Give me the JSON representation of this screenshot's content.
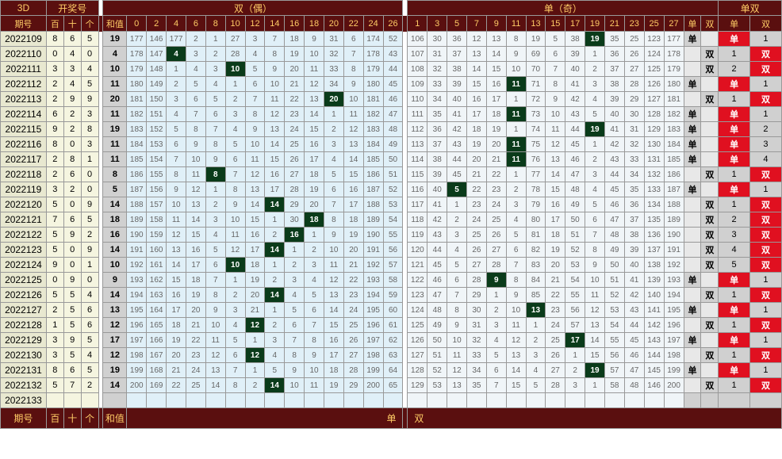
{
  "header": {
    "title3d": "3D",
    "kjh": "开奖号",
    "shuang": "双（偶）",
    "dan": "单（奇）",
    "ds": "单双",
    "qihao": "期号",
    "bai": "百",
    "shi": "十",
    "ge": "个",
    "hezhi": "和值",
    "danL": "单",
    "shuangL": "双"
  },
  "even_cols": [
    0,
    2,
    4,
    6,
    8,
    10,
    12,
    14,
    16,
    18,
    20,
    22,
    24,
    26
  ],
  "odd_cols": [
    1,
    3,
    5,
    7,
    9,
    11,
    13,
    15,
    17,
    19,
    21,
    23,
    25,
    27
  ],
  "rows": [
    {
      "qi": "2022109",
      "d": [
        8,
        6,
        5
      ],
      "hz": 19,
      "ev": [
        177,
        146,
        177,
        2,
        1,
        27,
        3,
        7,
        18,
        9,
        31,
        6,
        174,
        52
      ],
      "od": [
        106,
        30,
        36,
        12,
        13,
        8,
        19,
        5,
        38,
        "",
        35,
        25,
        123,
        177
      ],
      "ehit": -1,
      "ohit": 9,
      "v": 19,
      "sd": "单",
      "dc": "单",
      "sc": 1
    },
    {
      "qi": "2022110",
      "d": [
        0,
        4,
        0
      ],
      "hz": 4,
      "ev": [
        178,
        147,
        "",
        3,
        2,
        28,
        4,
        8,
        19,
        10,
        32,
        7,
        178,
        43
      ],
      "od": [
        107,
        31,
        37,
        13,
        14,
        9,
        69,
        6,
        39,
        1,
        36,
        26,
        124,
        178
      ],
      "ehit": 2,
      "ohit": -1,
      "v": 4,
      "sd": "双",
      "dc": 1,
      "sc": "双"
    },
    {
      "qi": "2022111",
      "d": [
        3,
        3,
        4
      ],
      "hz": 10,
      "ev": [
        179,
        148,
        1,
        4,
        3,
        "",
        5,
        9,
        20,
        11,
        33,
        8,
        179,
        44
      ],
      "od": [
        108,
        32,
        38,
        14,
        15,
        10,
        70,
        7,
        40,
        2,
        37,
        27,
        125,
        179
      ],
      "ehit": 5,
      "ohit": -1,
      "v": 10,
      "sd": "双",
      "dc": 2,
      "sc": "双"
    },
    {
      "qi": "2022112",
      "d": [
        2,
        4,
        5
      ],
      "hz": 11,
      "ev": [
        180,
        149,
        2,
        5,
        4,
        1,
        6,
        10,
        21,
        12,
        34,
        9,
        180,
        45
      ],
      "od": [
        109,
        33,
        39,
        15,
        16,
        "",
        71,
        8,
        41,
        3,
        38,
        28,
        126,
        180
      ],
      "ehit": -1,
      "ohit": 5,
      "v": 11,
      "sd": "单",
      "dc": "单",
      "sc": 1
    },
    {
      "qi": "2022113",
      "d": [
        2,
        9,
        9
      ],
      "hz": 20,
      "ev": [
        181,
        150,
        3,
        6,
        5,
        2,
        7,
        11,
        22,
        13,
        "",
        10,
        181,
        46
      ],
      "od": [
        110,
        34,
        40,
        16,
        17,
        1,
        72,
        9,
        42,
        4,
        39,
        29,
        127,
        181
      ],
      "ehit": 10,
      "ohit": -1,
      "v": 20,
      "sd": "双",
      "dc": 1,
      "sc": "双"
    },
    {
      "qi": "2022114",
      "d": [
        6,
        2,
        3
      ],
      "hz": 11,
      "ev": [
        182,
        151,
        4,
        7,
        6,
        3,
        8,
        12,
        23,
        14,
        1,
        11,
        182,
        47
      ],
      "od": [
        111,
        35,
        41,
        17,
        18,
        "",
        73,
        10,
        43,
        5,
        40,
        30,
        128,
        182
      ],
      "ehit": -1,
      "ohit": 5,
      "v": 11,
      "sd": "单",
      "dc": "单",
      "sc": 1
    },
    {
      "qi": "2022115",
      "d": [
        9,
        2,
        8
      ],
      "hz": 19,
      "ev": [
        183,
        152,
        5,
        8,
        7,
        4,
        9,
        13,
        24,
        15,
        2,
        12,
        183,
        48
      ],
      "od": [
        112,
        36,
        42,
        18,
        19,
        1,
        74,
        11,
        44,
        "",
        41,
        31,
        129,
        183
      ],
      "ehit": -1,
      "ohit": 9,
      "v": 19,
      "sd": "单",
      "dc": "单",
      "sc": 2
    },
    {
      "qi": "2022116",
      "d": [
        8,
        0,
        3
      ],
      "hz": 11,
      "ev": [
        184,
        153,
        6,
        9,
        8,
        5,
        10,
        14,
        25,
        16,
        3,
        13,
        184,
        49
      ],
      "od": [
        113,
        37,
        43,
        19,
        20,
        "",
        75,
        12,
        45,
        1,
        42,
        32,
        130,
        184
      ],
      "ehit": -1,
      "ohit": 5,
      "v": 11,
      "sd": "单",
      "dc": "单",
      "sc": 3
    },
    {
      "qi": "2022117",
      "d": [
        2,
        8,
        1
      ],
      "hz": 11,
      "ev": [
        185,
        154,
        7,
        10,
        9,
        6,
        11,
        15,
        26,
        17,
        4,
        14,
        185,
        50
      ],
      "od": [
        114,
        38,
        44,
        20,
        21,
        "",
        76,
        13,
        46,
        2,
        43,
        33,
        131,
        185
      ],
      "ehit": -1,
      "ohit": 5,
      "v": 11,
      "sd": "单",
      "dc": "单",
      "sc": 4
    },
    {
      "qi": "2022118",
      "d": [
        2,
        6,
        0
      ],
      "hz": 8,
      "ev": [
        186,
        155,
        8,
        11,
        "",
        7,
        12,
        16,
        27,
        18,
        5,
        15,
        186,
        51
      ],
      "od": [
        115,
        39,
        45,
        21,
        22,
        1,
        77,
        14,
        47,
        3,
        44,
        34,
        132,
        186
      ],
      "ehit": 4,
      "ohit": -1,
      "v": 8,
      "sd": "双",
      "dc": 1,
      "sc": "双"
    },
    {
      "qi": "2022119",
      "d": [
        3,
        2,
        0
      ],
      "hz": 5,
      "ev": [
        187,
        156,
        9,
        12,
        1,
        8,
        13,
        17,
        28,
        19,
        6,
        16,
        187,
        52
      ],
      "od": [
        116,
        40,
        "",
        22,
        23,
        2,
        78,
        15,
        48,
        4,
        45,
        35,
        133,
        187
      ],
      "ehit": -1,
      "ohit": 2,
      "v": 5,
      "sd": "单",
      "dc": "单",
      "sc": 1
    },
    {
      "qi": "2022120",
      "d": [
        5,
        0,
        9
      ],
      "hz": 14,
      "ev": [
        188,
        157,
        10,
        13,
        2,
        9,
        14,
        "",
        29,
        20,
        7,
        17,
        188,
        53
      ],
      "od": [
        117,
        41,
        1,
        23,
        24,
        3,
        79,
        16,
        49,
        5,
        46,
        36,
        134,
        188
      ],
      "ehit": 7,
      "ohit": -1,
      "v": 14,
      "sd": "双",
      "dc": 1,
      "sc": "双"
    },
    {
      "qi": "2022121",
      "d": [
        7,
        6,
        5
      ],
      "hz": 18,
      "ev": [
        189,
        158,
        11,
        14,
        3,
        10,
        15,
        1,
        30,
        "",
        8,
        18,
        189,
        54
      ],
      "od": [
        118,
        42,
        2,
        24,
        25,
        4,
        80,
        17,
        50,
        6,
        47,
        37,
        135,
        189
      ],
      "ehit": 9,
      "ohit": -1,
      "v": 18,
      "sd": "双",
      "dc": 2,
      "sc": "双"
    },
    {
      "qi": "2022122",
      "d": [
        5,
        9,
        2
      ],
      "hz": 16,
      "ev": [
        190,
        159,
        12,
        15,
        4,
        11,
        16,
        2,
        "",
        1,
        9,
        19,
        190,
        55
      ],
      "od": [
        119,
        43,
        3,
        25,
        26,
        5,
        81,
        18,
        51,
        7,
        48,
        38,
        136,
        190
      ],
      "ehit": 8,
      "ohit": -1,
      "v": 16,
      "sd": "双",
      "dc": 3,
      "sc": "双"
    },
    {
      "qi": "2022123",
      "d": [
        5,
        0,
        9
      ],
      "hz": 14,
      "ev": [
        191,
        160,
        13,
        16,
        5,
        12,
        17,
        "",
        1,
        2,
        10,
        20,
        191,
        56
      ],
      "od": [
        120,
        44,
        4,
        26,
        27,
        6,
        82,
        19,
        52,
        8,
        49,
        39,
        137,
        191
      ],
      "ehit": 7,
      "ohit": -1,
      "v": 14,
      "sd": "双",
      "dc": 4,
      "sc": "双"
    },
    {
      "qi": "2022124",
      "d": [
        9,
        0,
        1
      ],
      "hz": 10,
      "ev": [
        192,
        161,
        14,
        17,
        6,
        "",
        18,
        1,
        2,
        3,
        11,
        21,
        192,
        57
      ],
      "od": [
        121,
        45,
        5,
        27,
        28,
        7,
        83,
        20,
        53,
        9,
        50,
        40,
        138,
        192
      ],
      "ehit": 5,
      "ohit": -1,
      "v": 10,
      "sd": "双",
      "dc": 5,
      "sc": "双"
    },
    {
      "qi": "2022125",
      "d": [
        0,
        9,
        0
      ],
      "hz": 9,
      "ev": [
        193,
        162,
        15,
        18,
        7,
        1,
        19,
        2,
        3,
        4,
        12,
        22,
        193,
        58
      ],
      "od": [
        122,
        46,
        6,
        28,
        "",
        8,
        84,
        21,
        54,
        10,
        51,
        41,
        139,
        193
      ],
      "ehit": -1,
      "ohit": 4,
      "v": 9,
      "sd": "单",
      "dc": "单",
      "sc": 1
    },
    {
      "qi": "2022126",
      "d": [
        5,
        5,
        4
      ],
      "hz": 14,
      "ev": [
        194,
        163,
        16,
        19,
        8,
        2,
        20,
        "",
        4,
        5,
        13,
        23,
        194,
        59
      ],
      "od": [
        123,
        47,
        7,
        29,
        1,
        9,
        85,
        22,
        55,
        11,
        52,
        42,
        140,
        194
      ],
      "ehit": 7,
      "ohit": -1,
      "v": 14,
      "sd": "双",
      "dc": 1,
      "sc": "双"
    },
    {
      "qi": "2022127",
      "d": [
        2,
        5,
        6
      ],
      "hz": 13,
      "ev": [
        195,
        164,
        17,
        20,
        9,
        3,
        21,
        1,
        5,
        6,
        14,
        24,
        195,
        60
      ],
      "od": [
        124,
        48,
        8,
        30,
        2,
        10,
        "",
        23,
        56,
        12,
        53,
        43,
        141,
        195
      ],
      "ehit": -1,
      "ohit": 6,
      "v": 13,
      "sd": "单",
      "dc": "单",
      "sc": 1
    },
    {
      "qi": "2022128",
      "d": [
        1,
        5,
        6
      ],
      "hz": 12,
      "ev": [
        196,
        165,
        18,
        21,
        10,
        4,
        "",
        2,
        6,
        7,
        15,
        25,
        196,
        61
      ],
      "od": [
        125,
        49,
        9,
        31,
        3,
        11,
        1,
        24,
        57,
        13,
        54,
        44,
        142,
        196
      ],
      "ehit": 6,
      "ohit": -1,
      "v": 12,
      "sd": "双",
      "dc": 1,
      "sc": "双"
    },
    {
      "qi": "2022129",
      "d": [
        3,
        9,
        5
      ],
      "hz": 17,
      "ev": [
        197,
        166,
        19,
        22,
        11,
        5,
        1,
        3,
        7,
        8,
        16,
        26,
        197,
        62
      ],
      "od": [
        126,
        50,
        10,
        32,
        4,
        12,
        2,
        25,
        "",
        14,
        55,
        45,
        143,
        197
      ],
      "ehit": -1,
      "ohit": 8,
      "v": 17,
      "sd": "单",
      "dc": "单",
      "sc": 1
    },
    {
      "qi": "2022130",
      "d": [
        3,
        5,
        4
      ],
      "hz": 12,
      "ev": [
        198,
        167,
        20,
        23,
        12,
        6,
        "",
        4,
        8,
        9,
        17,
        27,
        198,
        63
      ],
      "od": [
        127,
        51,
        11,
        33,
        5,
        13,
        3,
        26,
        1,
        15,
        56,
        46,
        144,
        198
      ],
      "ehit": 6,
      "ohit": -1,
      "v": 12,
      "sd": "双",
      "dc": 1,
      "sc": "双"
    },
    {
      "qi": "2022131",
      "d": [
        8,
        6,
        5
      ],
      "hz": 19,
      "ev": [
        199,
        168,
        21,
        24,
        13,
        7,
        1,
        5,
        9,
        10,
        18,
        28,
        199,
        64
      ],
      "od": [
        128,
        52,
        12,
        34,
        6,
        14,
        4,
        27,
        2,
        "",
        57,
        47,
        145,
        199
      ],
      "ehit": -1,
      "ohit": 9,
      "v": 19,
      "sd": "单",
      "dc": "单",
      "sc": 1
    },
    {
      "qi": "2022132",
      "d": [
        5,
        7,
        2
      ],
      "hz": 14,
      "ev": [
        200,
        169,
        22,
        25,
        14,
        8,
        2,
        "",
        10,
        11,
        19,
        29,
        200,
        65
      ],
      "od": [
        129,
        53,
        13,
        35,
        7,
        15,
        5,
        28,
        3,
        1,
        58,
        48,
        146,
        200
      ],
      "ehit": 7,
      "ohit": -1,
      "v": 14,
      "sd": "双",
      "dc": 1,
      "sc": "双"
    },
    {
      "qi": "2022133",
      "d": [
        "",
        "",
        ""
      ],
      "hz": "",
      "ev": [
        "",
        "",
        "",
        "",
        "",
        "",
        "",
        "",
        "",
        "",
        "",
        "",
        "",
        ""
      ],
      "od": [
        "",
        "",
        "",
        "",
        "",
        "",
        "",
        "",
        "",
        "",
        "",
        "",
        "",
        ""
      ],
      "ehit": -1,
      "ohit": -1,
      "v": "",
      "sd": "",
      "dc": "",
      "sc": ""
    }
  ]
}
